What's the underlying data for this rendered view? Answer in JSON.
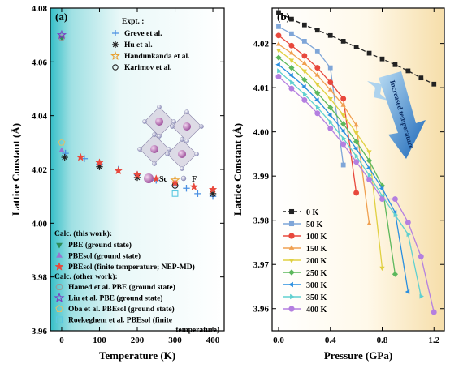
{
  "chart_data": [
    {
      "panel": "(a)",
      "type": "scatter",
      "xlabel": "Temperature (K)",
      "ylabel": "Lattice Constant (Å)",
      "xlim": [
        -30,
        430
      ],
      "ylim": [
        3.96,
        4.08
      ],
      "xticks": [
        0,
        100,
        200,
        300,
        400
      ],
      "yticks": [
        3.96,
        3.98,
        4.0,
        4.02,
        4.04,
        4.06,
        4.08
      ],
      "background": "gradient teal-to-white",
      "inset": {
        "labels": [
          "Sc",
          "F"
        ]
      },
      "legend_groups": {
        "expt": "Expt. :",
        "this_work": "Calc. (this work):",
        "other_work": "Calc. (other work):"
      },
      "series": [
        {
          "group": "expt",
          "name": "Greve et al.",
          "marker": "plus",
          "color": "#4a90e2",
          "x": [
            10,
            60,
            100,
            150,
            200,
            250,
            300,
            330,
            360,
            400
          ],
          "y": [
            4.026,
            4.024,
            4.022,
            4.02,
            4.018,
            4.016,
            4.014,
            4.013,
            4.011,
            4.01
          ]
        },
        {
          "group": "expt",
          "name": "Hu et al.",
          "marker": "asterisk",
          "color": "#222222",
          "x": [
            8,
            100,
            200,
            400
          ],
          "y": [
            4.0245,
            4.021,
            4.017,
            4.011
          ]
        },
        {
          "group": "expt",
          "name": "Handunkanda et al.",
          "marker": "star-open",
          "color": "#e8a030",
          "x": [
            300
          ],
          "y": [
            4.016
          ]
        },
        {
          "group": "expt",
          "name": "Karimov et al.",
          "marker": "circle-open",
          "color": "#222222",
          "x": [
            300
          ],
          "y": [
            4.014
          ]
        },
        {
          "group": "this_work",
          "name": "PBE (ground state)",
          "marker": "triangle-down",
          "color": "#2e8b57",
          "x": [
            0
          ],
          "y": [
            4.069
          ]
        },
        {
          "group": "this_work",
          "name": "PBEsol (ground state)",
          "marker": "triangle-up",
          "color": "#9b72cf",
          "x": [
            0
          ],
          "y": [
            4.027
          ]
        },
        {
          "group": "this_work",
          "name": "PBEsol (finite temperature; NEP-MD)",
          "marker": "star",
          "color": "#e8483c",
          "x": [
            50,
            100,
            150,
            200,
            250,
            300,
            350,
            400
          ],
          "y": [
            4.0245,
            4.0225,
            4.0195,
            4.018,
            4.0165,
            4.015,
            4.0135,
            4.0125
          ]
        },
        {
          "group": "other_work",
          "name": "Hamed et al. PBE (ground state)",
          "marker": "hexagon-open",
          "color": "#999999",
          "x": [
            0
          ],
          "y": [
            4.069
          ]
        },
        {
          "group": "other_work",
          "name": "Liu et al. PBE (ground state)",
          "marker": "star-open",
          "color": "#7a3fc0",
          "x": [
            0
          ],
          "y": [
            4.07
          ]
        },
        {
          "group": "other_work",
          "name": "Oba et al. PBEsol (ground state)",
          "marker": "pentagon-open",
          "color": "#d8c070",
          "x": [
            0
          ],
          "y": [
            4.03
          ]
        },
        {
          "group": "other_work",
          "name": "Roekeghem et al. PBEsol (finite temperature)",
          "marker": "square-open",
          "color": "#5bc8e0",
          "x": [
            300
          ],
          "y": [
            4.011
          ]
        }
      ]
    },
    {
      "panel": "(b)",
      "type": "line",
      "xlabel": "Pressure (GPa)",
      "ylabel": "Lattice Constant (Å)",
      "xlim": [
        -0.05,
        1.28
      ],
      "ylim": [
        3.955,
        4.028
      ],
      "xticks": [
        0.0,
        0.4,
        0.8,
        1.2
      ],
      "yticks": [
        3.96,
        3.97,
        3.98,
        3.99,
        4.0,
        4.01,
        4.02
      ],
      "annotation": "Increased temperature",
      "background": "gradient white-to-yellow",
      "series": [
        {
          "name": "0 K",
          "color": "#222222",
          "marker": "square",
          "dashed": true,
          "x": [
            0.0,
            0.1,
            0.2,
            0.3,
            0.4,
            0.5,
            0.6,
            0.7,
            0.8,
            0.9,
            1.0,
            1.1,
            1.2
          ],
          "y": [
            4.027,
            4.0255,
            4.0242,
            4.023,
            4.0218,
            4.0205,
            4.0192,
            4.0178,
            4.0165,
            4.0152,
            4.0138,
            4.0122,
            4.0108
          ]
        },
        {
          "name": "50  K",
          "color": "#7fa6d8",
          "marker": "square",
          "x": [
            0.0,
            0.1,
            0.2,
            0.3,
            0.4,
            0.5
          ],
          "y": [
            4.0238,
            4.0222,
            4.0205,
            4.0183,
            4.0145,
            3.9925
          ]
        },
        {
          "name": "100  K",
          "color": "#e8483c",
          "marker": "circle",
          "x": [
            0.0,
            0.1,
            0.2,
            0.3,
            0.4,
            0.5,
            0.6
          ],
          "y": [
            4.0218,
            4.0195,
            4.0172,
            4.0145,
            4.0112,
            4.0075,
            3.9862
          ]
        },
        {
          "name": "150  K",
          "color": "#f0a050",
          "marker": "triangle-up",
          "x": [
            0.0,
            0.1,
            0.2,
            0.3,
            0.4,
            0.5,
            0.6,
            0.7
          ],
          "y": [
            4.0198,
            4.0178,
            4.0155,
            4.0128,
            4.0095,
            4.006,
            4.0015,
            3.9792
          ]
        },
        {
          "name": "200  K",
          "color": "#e0d040",
          "marker": "triangle-down",
          "x": [
            0.0,
            0.1,
            0.2,
            0.3,
            0.4,
            0.5,
            0.6,
            0.7,
            0.8
          ],
          "y": [
            4.0185,
            4.0162,
            4.0138,
            4.0108,
            4.0075,
            4.0038,
            3.9998,
            3.9955,
            3.9692
          ]
        },
        {
          "name": "250  K",
          "color": "#5cb85c",
          "marker": "diamond",
          "x": [
            0.0,
            0.1,
            0.2,
            0.3,
            0.4,
            0.5,
            0.6,
            0.7,
            0.8,
            0.9
          ],
          "y": [
            4.0168,
            4.0145,
            4.0118,
            4.0088,
            4.0055,
            4.0018,
            3.9978,
            3.9935,
            3.9878,
            3.9678
          ]
        },
        {
          "name": "300  K",
          "color": "#2a8fe0",
          "marker": "triangle-left",
          "x": [
            0.0,
            0.1,
            0.2,
            0.3,
            0.4,
            0.5,
            0.6,
            0.7,
            0.8,
            0.9,
            1.0
          ],
          "y": [
            4.0152,
            4.0128,
            4.0102,
            4.0072,
            4.0038,
            4.0002,
            3.9962,
            3.9918,
            3.9872,
            3.9818,
            3.9638
          ]
        },
        {
          "name": "350  K",
          "color": "#60d0d0",
          "marker": "triangle-right",
          "x": [
            0.0,
            0.1,
            0.2,
            0.3,
            0.4,
            0.5,
            0.6,
            0.7,
            0.8,
            0.9,
            1.0,
            1.1
          ],
          "y": [
            4.0138,
            4.0112,
            4.0085,
            4.0055,
            4.0022,
            3.9985,
            3.9945,
            3.9902,
            3.9855,
            3.9812,
            3.9768,
            3.9628
          ]
        },
        {
          "name": "400  K",
          "color": "#b47fe0",
          "marker": "circle",
          "x": [
            0.0,
            0.1,
            0.2,
            0.3,
            0.4,
            0.5,
            0.6,
            0.7,
            0.8,
            0.9,
            1.0,
            1.1,
            1.2
          ],
          "y": [
            4.0125,
            4.0098,
            4.0072,
            4.0042,
            4.0008,
            3.9972,
            3.9932,
            3.9892,
            3.9848,
            3.9848,
            3.9795,
            3.9718,
            3.9592
          ]
        }
      ]
    }
  ]
}
